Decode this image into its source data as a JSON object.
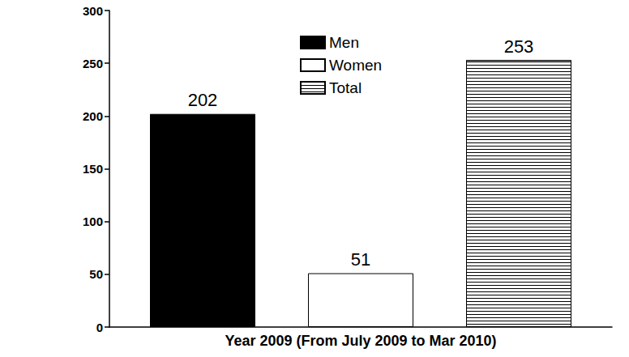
{
  "chart_data": {
    "type": "bar",
    "categories": [
      "Year 2009 (From July 2009 to Mar 2010)"
    ],
    "series": [
      {
        "name": "Men",
        "color": "#000000",
        "values": [
          202
        ]
      },
      {
        "name": "Women",
        "color": "#ffffff",
        "values": [
          51
        ]
      },
      {
        "name": "Total",
        "color": "#ffffff",
        "line_style": "horizontal",
        "values": [
          253
        ]
      }
    ],
    "ylim": [
      0,
      300
    ],
    "yticks": [
      0,
      50,
      100,
      150,
      200,
      250,
      300
    ],
    "grid": false,
    "legend": "top",
    "data_labels": true
  }
}
